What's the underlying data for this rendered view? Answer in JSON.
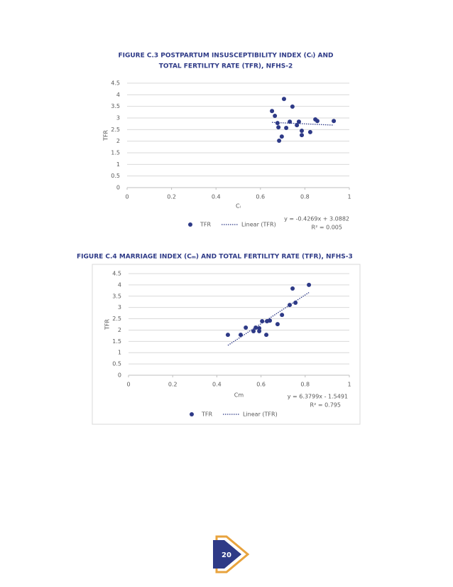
{
  "chart_data": [
    {
      "type": "scatter",
      "title": [
        "FIGURE C.3 POSTPARTUM INSUSCEPTIBILITY INDEX (Cᵢ) AND",
        "TOTAL FERTILITY RATE (TFR), NFHS-2"
      ],
      "x_label": "Cᵢ",
      "y_label": "TFR",
      "series": [
        {
          "name": "TFR",
          "color": "#2e3a87",
          "x": [
            0.706,
            0.652,
            0.665,
            0.744,
            0.677,
            0.681,
            0.716,
            0.732,
            0.773,
            0.764,
            0.847,
            0.856,
            0.93,
            0.786,
            0.786,
            0.824,
            0.696,
            0.684
          ],
          "values": [
            3.82,
            3.3,
            3.09,
            3.49,
            2.78,
            2.6,
            2.57,
            2.84,
            2.84,
            2.69,
            2.94,
            2.87,
            2.87,
            2.45,
            2.26,
            2.39,
            2.2,
            2.02
          ]
        }
      ],
      "trendline": {
        "name": "Linear (TFR)",
        "slope": -0.4269,
        "intercept": 3.0882,
        "r2": 0.005,
        "equation_label": "y = -0.4269x + 3.0882",
        "r2_label": "R² = 0.005"
      },
      "xlim": [
        0,
        1
      ],
      "xticks": [
        0,
        0.2,
        0.4,
        0.6,
        0.8,
        1
      ],
      "ylim": [
        0,
        4.5
      ],
      "yticks": [
        0,
        0.5,
        1,
        1.5,
        2,
        2.5,
        3,
        3.5,
        4,
        4.5
      ],
      "grid": true
    },
    {
      "type": "scatter",
      "title": "FIGURE C.4 MARRIAGE INDEX (Cₘ) AND TOTAL FERTILITY RATE (TFR), NFHS-3",
      "x_label": "Cm",
      "y_label": "TFR",
      "series": [
        {
          "name": "TFR",
          "color": "#2e3a87",
          "x": [
            0.45,
            0.508,
            0.531,
            0.566,
            0.576,
            0.592,
            0.592,
            0.605,
            0.624,
            0.627,
            0.64,
            0.675,
            0.695,
            0.73,
            0.756,
            0.743,
            0.817
          ],
          "values": [
            1.79,
            1.79,
            2.11,
            1.95,
            2.11,
            1.95,
            2.08,
            2.39,
            1.79,
            2.39,
            2.42,
            2.26,
            2.67,
            3.11,
            3.21,
            3.84,
            4.0
          ]
        }
      ],
      "trendline": {
        "name": "Linear (TFR)",
        "slope": 6.3799,
        "intercept": -1.5491,
        "r2": 0.795,
        "equation_label": "y = 6.3799x - 1.5491",
        "r2_label": "R² = 0.795"
      },
      "xlim": [
        0,
        1
      ],
      "xticks": [
        0,
        0.2,
        0.4,
        0.6,
        0.8,
        1
      ],
      "ylim": [
        0,
        4.5
      ],
      "yticks": [
        0,
        0.5,
        1,
        1.5,
        2,
        2.5,
        3,
        3.5,
        4,
        4.5
      ],
      "grid": true
    }
  ],
  "page_number": "20"
}
